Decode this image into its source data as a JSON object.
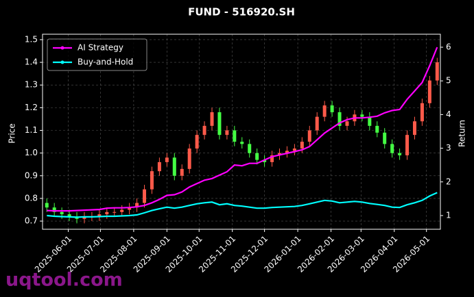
{
  "chart_data": {
    "type": "candlestick",
    "title": "FUND - 516920.SH",
    "ylabel": "Price",
    "y2label": "Return",
    "x": [
      "2025-05-12",
      "2025-05-19",
      "2025-05-26",
      "2025-06-02",
      "2025-06-09",
      "2025-06-16",
      "2025-06-23",
      "2025-06-30",
      "2025-07-07",
      "2025-07-14",
      "2025-07-21",
      "2025-07-28",
      "2025-08-04",
      "2025-08-11",
      "2025-08-18",
      "2025-08-25",
      "2025-09-01",
      "2025-09-08",
      "2025-09-15",
      "2025-09-22",
      "2025-09-29",
      "2025-10-06",
      "2025-10-13",
      "2025-10-20",
      "2025-10-27",
      "2025-11-03",
      "2025-11-10",
      "2025-11-17",
      "2025-11-24",
      "2025-12-01",
      "2025-12-08",
      "2025-12-15",
      "2025-12-22",
      "2025-12-29",
      "2026-01-05",
      "2026-01-12",
      "2026-01-19",
      "2026-01-26",
      "2026-02-02",
      "2026-02-09",
      "2026-02-16",
      "2026-02-23",
      "2026-03-02",
      "2026-03-09",
      "2026-03-16",
      "2026-03-23",
      "2026-03-30",
      "2026-04-06",
      "2026-04-13",
      "2026-04-20",
      "2026-04-27",
      "2026-05-04",
      "2026-05-11"
    ],
    "open": [
      0.78,
      0.76,
      0.74,
      0.73,
      0.72,
      0.71,
      0.72,
      0.72,
      0.73,
      0.74,
      0.74,
      0.75,
      0.76,
      0.78,
      0.84,
      0.92,
      0.96,
      0.98,
      0.9,
      0.93,
      1.02,
      1.08,
      1.12,
      1.18,
      1.08,
      1.1,
      1.05,
      1.04,
      1.0,
      0.97,
      0.96,
      0.99,
      1.0,
      1.01,
      1.02,
      1.05,
      1.1,
      1.16,
      1.21,
      1.18,
      1.12,
      1.14,
      1.17,
      1.16,
      1.12,
      1.09,
      1.04,
      1.0,
      0.99,
      1.08,
      1.14,
      1.22,
      1.32
    ],
    "high": [
      0.8,
      0.78,
      0.76,
      0.75,
      0.74,
      0.74,
      0.74,
      0.75,
      0.76,
      0.76,
      0.77,
      0.78,
      0.8,
      0.86,
      0.94,
      0.98,
      1.0,
      1.0,
      0.95,
      1.04,
      1.1,
      1.14,
      1.2,
      1.2,
      1.12,
      1.12,
      1.07,
      1.06,
      1.02,
      0.99,
      1.01,
      1.02,
      1.03,
      1.04,
      1.07,
      1.12,
      1.18,
      1.23,
      1.23,
      1.2,
      1.16,
      1.19,
      1.19,
      1.18,
      1.14,
      1.11,
      1.06,
      1.02,
      1.1,
      1.16,
      1.24,
      1.34,
      1.42
    ],
    "low": [
      0.74,
      0.72,
      0.71,
      0.7,
      0.69,
      0.69,
      0.7,
      0.7,
      0.71,
      0.72,
      0.72,
      0.73,
      0.74,
      0.76,
      0.82,
      0.9,
      0.94,
      0.88,
      0.88,
      0.91,
      1.0,
      1.06,
      1.1,
      1.06,
      1.06,
      1.03,
      1.02,
      0.98,
      0.95,
      0.94,
      0.94,
      0.97,
      0.98,
      0.99,
      1.0,
      1.03,
      1.08,
      1.14,
      1.16,
      1.1,
      1.1,
      1.12,
      1.14,
      1.1,
      1.07,
      1.02,
      0.98,
      0.97,
      0.97,
      1.06,
      1.12,
      1.2,
      1.3
    ],
    "close": [
      0.76,
      0.74,
      0.73,
      0.72,
      0.71,
      0.72,
      0.72,
      0.73,
      0.74,
      0.74,
      0.75,
      0.76,
      0.78,
      0.84,
      0.92,
      0.96,
      0.98,
      0.9,
      0.93,
      1.02,
      1.08,
      1.12,
      1.18,
      1.08,
      1.1,
      1.05,
      1.04,
      1.0,
      0.97,
      0.96,
      0.99,
      1.0,
      1.01,
      1.02,
      1.05,
      1.1,
      1.16,
      1.21,
      1.18,
      1.12,
      1.14,
      1.17,
      1.16,
      1.12,
      1.09,
      1.04,
      1.0,
      0.99,
      1.08,
      1.14,
      1.22,
      1.32,
      1.4
    ],
    "up_color": "#ff5a4a",
    "down_color": "#44ff44",
    "series": [
      {
        "name": "AI Strategy",
        "color": "#ff00ff",
        "axis": "y2",
        "values": [
          1.15,
          1.14,
          1.14,
          1.14,
          1.15,
          1.16,
          1.17,
          1.18,
          1.22,
          1.23,
          1.23,
          1.24,
          1.26,
          1.3,
          1.38,
          1.48,
          1.6,
          1.62,
          1.7,
          1.85,
          1.95,
          2.05,
          2.1,
          2.2,
          2.3,
          2.5,
          2.48,
          2.55,
          2.55,
          2.65,
          2.75,
          2.8,
          2.85,
          2.9,
          2.95,
          3.05,
          3.25,
          3.45,
          3.6,
          3.75,
          3.85,
          3.9,
          3.9,
          3.92,
          3.95,
          4.05,
          4.12,
          4.15,
          4.45,
          4.7,
          4.95,
          5.45,
          6.0
        ]
      },
      {
        "name": "Buy-and-Hold",
        "color": "#00ffff",
        "axis": "y2",
        "values": [
          1.0,
          0.98,
          0.97,
          0.96,
          0.95,
          0.96,
          0.96,
          0.97,
          0.98,
          0.98,
          0.99,
          1.0,
          1.02,
          1.08,
          1.15,
          1.2,
          1.25,
          1.22,
          1.25,
          1.3,
          1.35,
          1.38,
          1.4,
          1.32,
          1.35,
          1.3,
          1.28,
          1.25,
          1.22,
          1.22,
          1.24,
          1.25,
          1.26,
          1.27,
          1.3,
          1.35,
          1.4,
          1.45,
          1.43,
          1.38,
          1.4,
          1.42,
          1.4,
          1.36,
          1.33,
          1.3,
          1.25,
          1.24,
          1.32,
          1.38,
          1.45,
          1.58,
          1.68
        ]
      }
    ],
    "xlim": [
      "2025-05-08",
      "2026-05-14"
    ],
    "xticks": [
      "2025-06-01",
      "2025-07-01",
      "2025-08-01",
      "2025-09-01",
      "2025-10-01",
      "2025-11-01",
      "2025-12-01",
      "2026-01-01",
      "2026-02-01",
      "2026-03-01",
      "2026-04-01",
      "2026-05-01"
    ],
    "ylim": [
      0.664,
      1.524
    ],
    "yticks": [
      0.7,
      0.8,
      0.9,
      {
        "value": 1,
        "label": "1.0"
      },
      1.1,
      1.2,
      1.3,
      1.4,
      1.5
    ],
    "y2lim": [
      0.593,
      6.386
    ],
    "y2ticks": [
      1,
      2,
      3,
      4,
      5,
      6
    ],
    "grid": true,
    "legend": "upper left"
  },
  "watermark": "uqtool.com"
}
